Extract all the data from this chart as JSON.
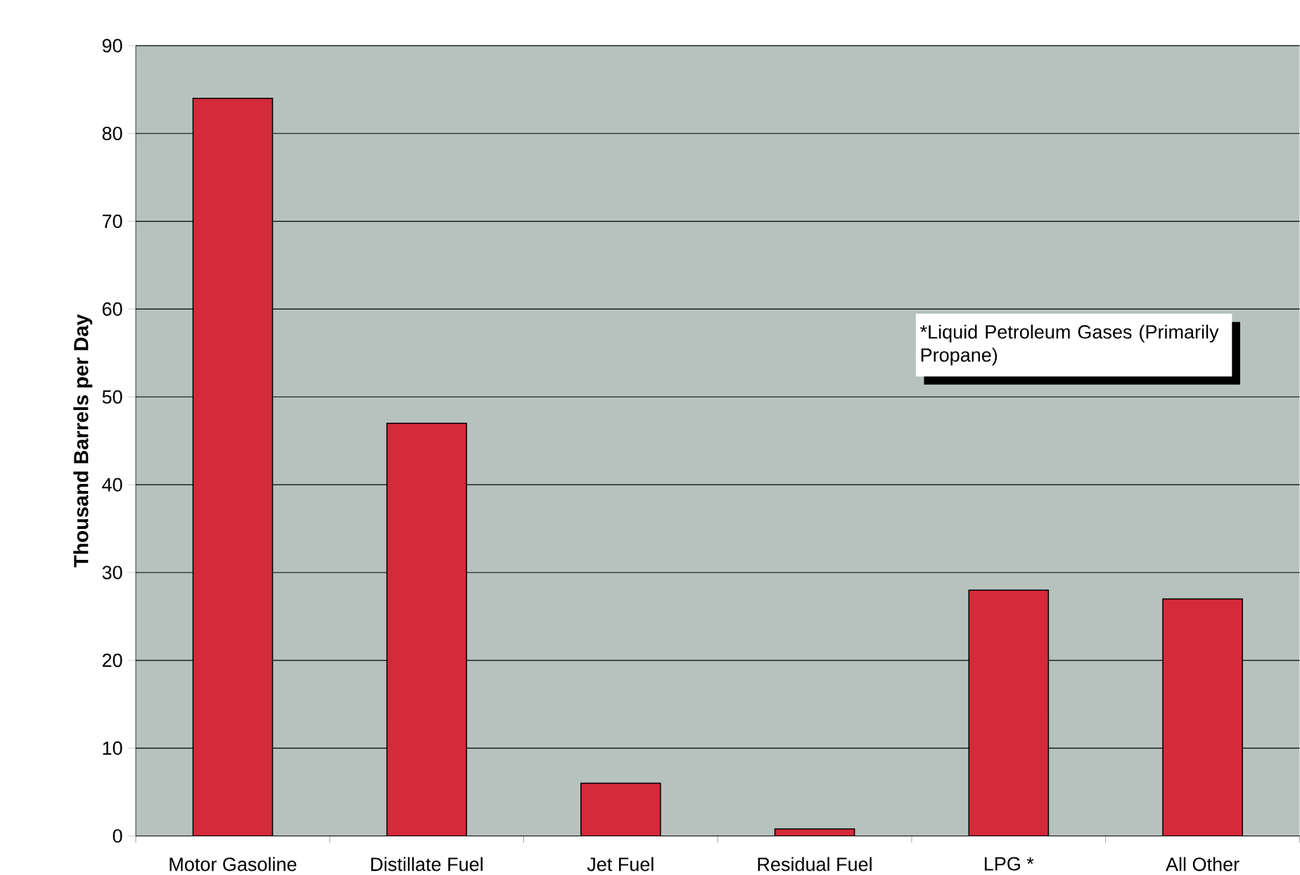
{
  "chart_data": {
    "type": "bar",
    "ylabel": "Thousand Barrels per Day",
    "categories": [
      "Motor Gasoline",
      "Distillate Fuel",
      "Jet Fuel",
      "Residual Fuel",
      "LPG *",
      "All Other"
    ],
    "values": [
      84,
      47,
      6,
      0.8,
      28,
      27
    ],
    "color": "#d42a3a",
    "ylim": [
      0,
      90
    ],
    "yticks": [
      0,
      10,
      20,
      30,
      40,
      50,
      60,
      70,
      80,
      90
    ],
    "grid": "y",
    "annotations": [
      "*Liquid Petroleum Gases (Primarily Propane)"
    ]
  }
}
